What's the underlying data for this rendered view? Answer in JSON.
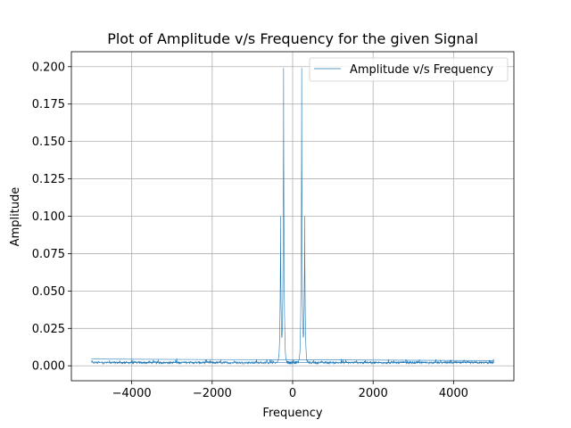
{
  "chart_data": {
    "type": "line",
    "title": "Plot of Amplitude v/s Frequency for the given Signal",
    "xlabel": "Frequency",
    "ylabel": "Amplitude",
    "xlim": [
      -5500,
      5500
    ],
    "ylim": [
      -0.01,
      0.21
    ],
    "xticks": [
      -4000,
      -2000,
      0,
      2000,
      4000
    ],
    "xtick_labels": [
      "−4000",
      "−2000",
      "0",
      "2000",
      "4000"
    ],
    "yticks": [
      0.0,
      0.025,
      0.05,
      0.075,
      0.1,
      0.125,
      0.15,
      0.175,
      0.2
    ],
    "ytick_labels": [
      "0.000",
      "0.025",
      "0.050",
      "0.075",
      "0.100",
      "0.125",
      "0.150",
      "0.175",
      "0.200"
    ],
    "grid": true,
    "legend_placement": "top-right",
    "series": [
      {
        "name": "Amplitude v/s Frequency",
        "color": "#1f77b4",
        "peaks": [
          {
            "x": -300,
            "y": 0.1
          },
          {
            "x": -225,
            "y": 0.199
          },
          {
            "x": 225,
            "y": 0.199
          },
          {
            "x": 300,
            "y": 0.1
          }
        ],
        "noise_floor": 0.002,
        "x_range": [
          -5000,
          5000
        ]
      }
    ]
  }
}
